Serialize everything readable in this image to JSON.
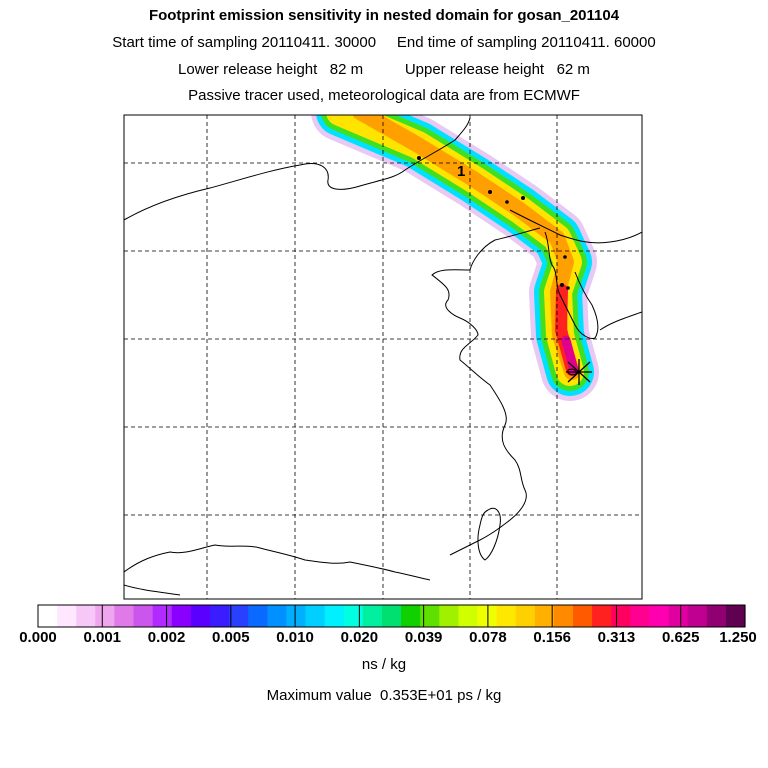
{
  "titles": {
    "line1": "Footprint emission sensitivity in nested domain for gosan_201104",
    "line2": "Start time of sampling 20110411. 30000     End time of sampling 20110411. 60000",
    "line3": "Lower release height   82 m          Upper release height   62 m",
    "line4": "Passive tracer used, meteorological data are from ECMWF"
  },
  "map": {
    "plume_label": "1",
    "receptor_marker": "receptor-star-icon"
  },
  "colorbar": {
    "colors": [
      "#ffffff",
      "#ffe8ff",
      "#f7c8f7",
      "#eea6ee",
      "#e07ae8",
      "#cc55ee",
      "#b12aff",
      "#8a00ff",
      "#5a00ff",
      "#3a1cff",
      "#2a40ff",
      "#0a6aff",
      "#0090ff",
      "#00b0ff",
      "#00d0ff",
      "#00f0ff",
      "#00ffe0",
      "#00f0a0",
      "#00e070",
      "#10d000",
      "#60e000",
      "#a0f000",
      "#d0ff00",
      "#f0ff00",
      "#ffe800",
      "#ffd000",
      "#ffb000",
      "#ff8a00",
      "#ff5a00",
      "#ff2020",
      "#ff0060",
      "#ff0090",
      "#ff00b0",
      "#e000a0",
      "#c00090",
      "#900070",
      "#600050"
    ],
    "ticks": [
      "0.000",
      "0.001",
      "0.002",
      "0.005",
      "0.010",
      "0.020",
      "0.039",
      "0.078",
      "0.156",
      "0.313",
      "0.625",
      "1.250"
    ],
    "units": "ns / kg",
    "max_value": "Maximum value  0.353E+01 ps / kg"
  }
}
